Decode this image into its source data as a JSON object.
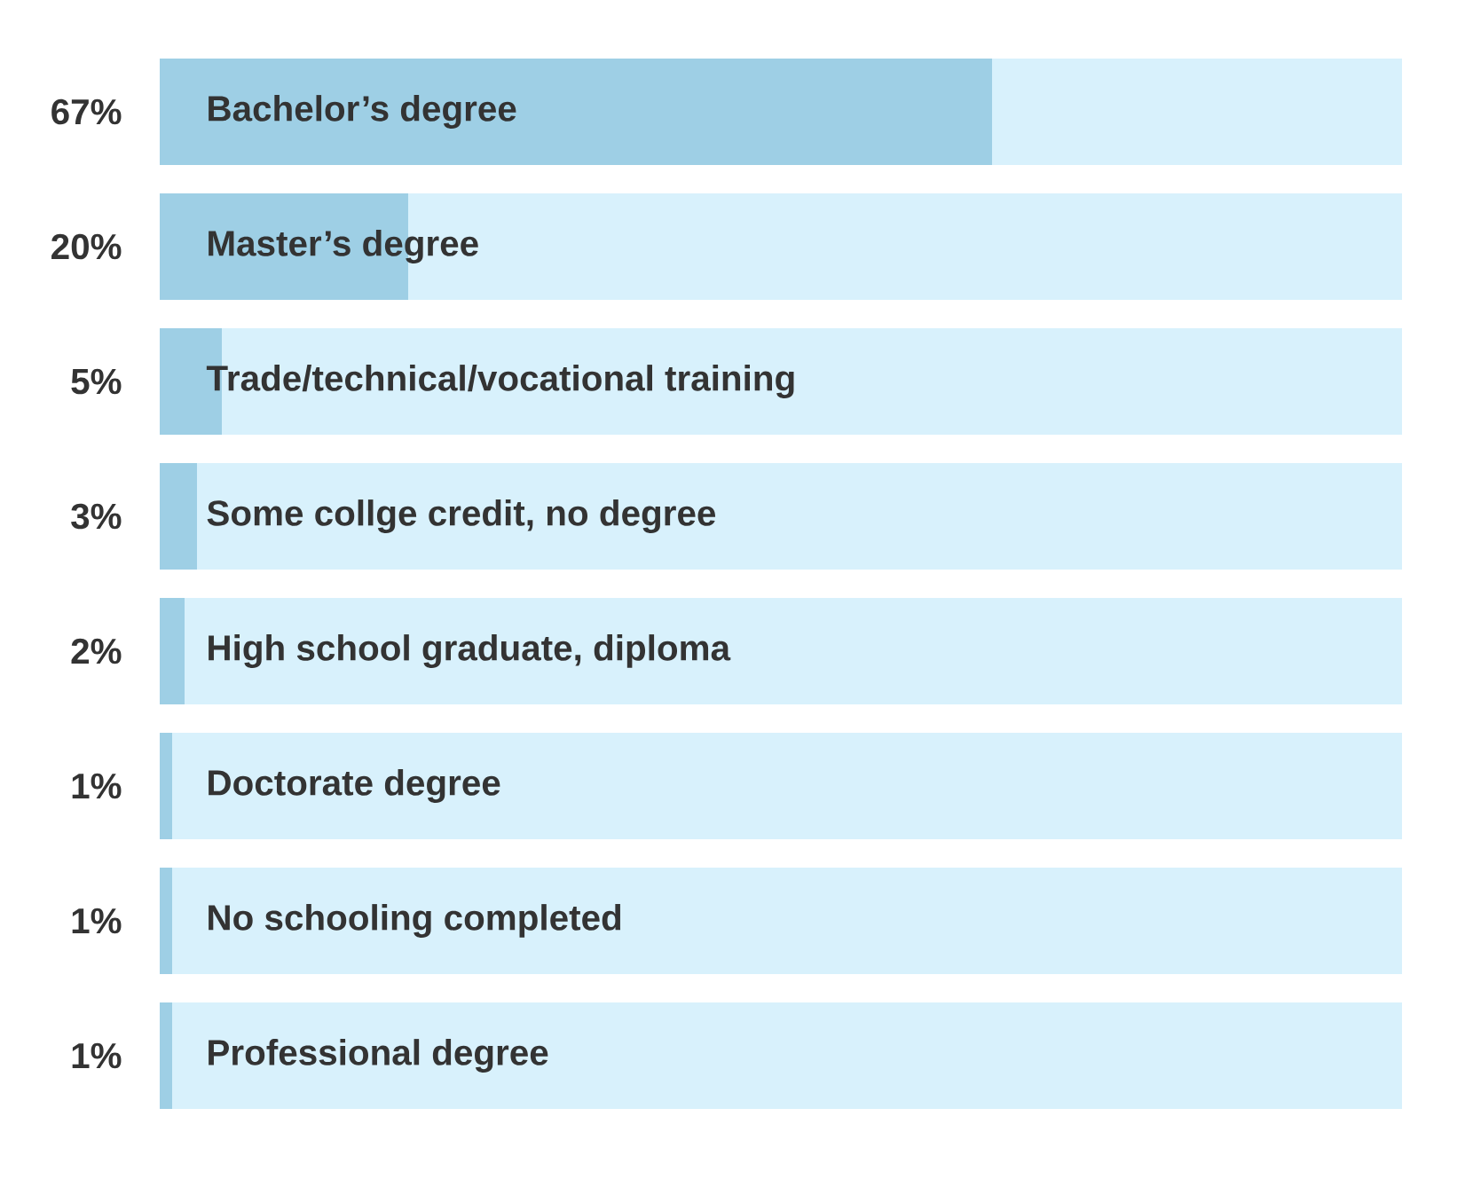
{
  "chart_data": {
    "type": "bar",
    "orientation": "horizontal",
    "stacked": true,
    "categories": [
      "Bachelor’s degree",
      "Master’s degree",
      "Trade/technical/vocational training",
      "Some collge credit, no degree",
      "High school graduate, diploma",
      "Doctorate degree",
      "No schooling completed",
      "Professional degree"
    ],
    "xlim": [
      0,
      100
    ],
    "series": [
      {
        "color": "#9ecfe5",
        "values": [
          67,
          20,
          5,
          3,
          2,
          1,
          1,
          1
        ],
        "value_labels": [
          "67%",
          "20%",
          "5%",
          "3%",
          "2%",
          "1%",
          "1%",
          "1%"
        ]
      },
      {
        "color": "#d8f1fc",
        "values": [
          33,
          80,
          95,
          97,
          98,
          99,
          99,
          99
        ]
      }
    ]
  }
}
